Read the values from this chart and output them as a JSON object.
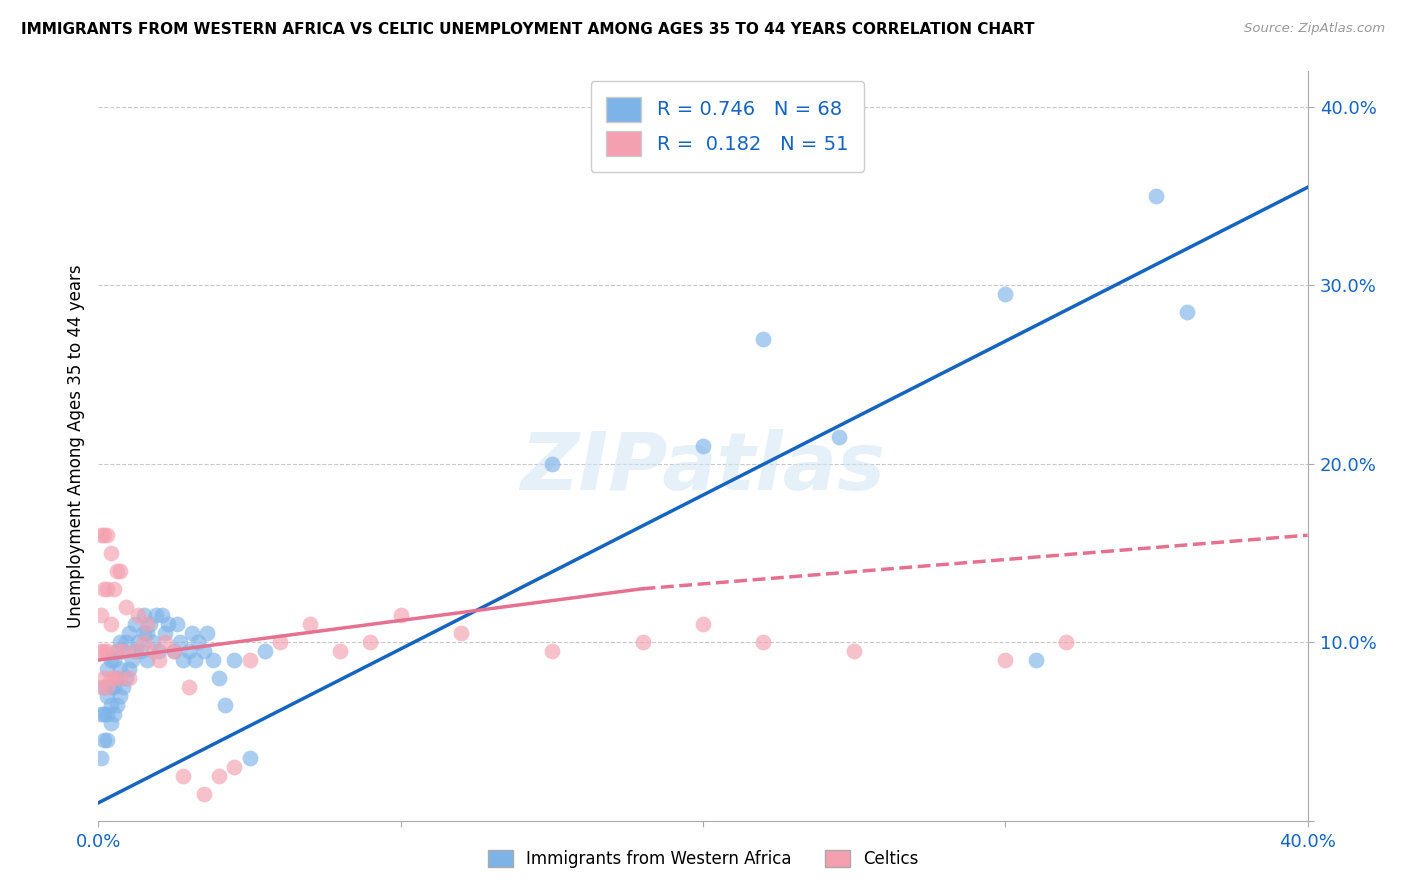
{
  "title": "IMMIGRANTS FROM WESTERN AFRICA VS CELTIC UNEMPLOYMENT AMONG AGES 35 TO 44 YEARS CORRELATION CHART",
  "source": "Source: ZipAtlas.com",
  "ylabel": "Unemployment Among Ages 35 to 44 years",
  "xlim": [
    0.0,
    0.4
  ],
  "ylim": [
    0.0,
    0.42
  ],
  "yticks": [
    0.0,
    0.1,
    0.2,
    0.3,
    0.4
  ],
  "ytick_labels_right": [
    "",
    "10.0%",
    "20.0%",
    "30.0%",
    "40.0%"
  ],
  "xticks": [
    0.0,
    0.1,
    0.2,
    0.3,
    0.4
  ],
  "xtick_labels": [
    "0.0%",
    "",
    "",
    "",
    "40.0%"
  ],
  "legend_blue_r": "0.746",
  "legend_blue_n": "68",
  "legend_pink_r": "0.182",
  "legend_pink_n": "51",
  "legend_label_blue": "Immigrants from Western Africa",
  "legend_label_pink": "Celtics",
  "blue_color": "#7EB3E8",
  "pink_color": "#F4A0B0",
  "blue_line_color": "#1565C0",
  "pink_line_color": "#E57090",
  "watermark_text": "ZIPatlas",
  "blue_scatter_x": [
    0.001,
    0.001,
    0.002,
    0.002,
    0.002,
    0.003,
    0.003,
    0.003,
    0.003,
    0.004,
    0.004,
    0.004,
    0.004,
    0.005,
    0.005,
    0.005,
    0.006,
    0.006,
    0.006,
    0.007,
    0.007,
    0.007,
    0.008,
    0.008,
    0.009,
    0.009,
    0.01,
    0.01,
    0.011,
    0.012,
    0.012,
    0.013,
    0.014,
    0.015,
    0.015,
    0.016,
    0.016,
    0.017,
    0.018,
    0.019,
    0.02,
    0.021,
    0.022,
    0.023,
    0.025,
    0.026,
    0.027,
    0.028,
    0.03,
    0.031,
    0.032,
    0.033,
    0.035,
    0.036,
    0.038,
    0.04,
    0.042,
    0.045,
    0.05,
    0.055,
    0.15,
    0.2,
    0.22,
    0.245,
    0.3,
    0.31,
    0.35,
    0.36
  ],
  "blue_scatter_y": [
    0.035,
    0.06,
    0.045,
    0.06,
    0.075,
    0.045,
    0.06,
    0.07,
    0.085,
    0.055,
    0.065,
    0.075,
    0.09,
    0.06,
    0.075,
    0.09,
    0.065,
    0.08,
    0.095,
    0.07,
    0.085,
    0.1,
    0.075,
    0.095,
    0.08,
    0.1,
    0.085,
    0.105,
    0.09,
    0.095,
    0.11,
    0.1,
    0.095,
    0.105,
    0.115,
    0.09,
    0.105,
    0.11,
    0.1,
    0.115,
    0.095,
    0.115,
    0.105,
    0.11,
    0.095,
    0.11,
    0.1,
    0.09,
    0.095,
    0.105,
    0.09,
    0.1,
    0.095,
    0.105,
    0.09,
    0.08,
    0.065,
    0.09,
    0.035,
    0.095,
    0.2,
    0.21,
    0.27,
    0.215,
    0.295,
    0.09,
    0.35,
    0.285
  ],
  "pink_scatter_x": [
    0.001,
    0.001,
    0.001,
    0.001,
    0.002,
    0.002,
    0.002,
    0.002,
    0.003,
    0.003,
    0.003,
    0.003,
    0.004,
    0.004,
    0.004,
    0.005,
    0.005,
    0.006,
    0.006,
    0.007,
    0.007,
    0.008,
    0.009,
    0.01,
    0.012,
    0.013,
    0.015,
    0.016,
    0.018,
    0.02,
    0.022,
    0.025,
    0.028,
    0.03,
    0.035,
    0.04,
    0.045,
    0.05,
    0.06,
    0.07,
    0.08,
    0.09,
    0.1,
    0.12,
    0.15,
    0.18,
    0.2,
    0.22,
    0.25,
    0.3,
    0.32
  ],
  "pink_scatter_y": [
    0.075,
    0.095,
    0.115,
    0.16,
    0.08,
    0.095,
    0.13,
    0.16,
    0.075,
    0.095,
    0.13,
    0.16,
    0.08,
    0.11,
    0.15,
    0.08,
    0.13,
    0.095,
    0.14,
    0.08,
    0.14,
    0.095,
    0.12,
    0.08,
    0.095,
    0.115,
    0.1,
    0.11,
    0.095,
    0.09,
    0.1,
    0.095,
    0.025,
    0.075,
    0.015,
    0.025,
    0.03,
    0.09,
    0.1,
    0.11,
    0.095,
    0.1,
    0.115,
    0.105,
    0.095,
    0.1,
    0.11,
    0.1,
    0.095,
    0.09,
    0.1
  ],
  "blue_line_y_at_0": 0.01,
  "blue_line_y_at_040": 0.355,
  "pink_line_y_at_0": 0.09,
  "pink_line_solid_end_x": 0.18,
  "pink_line_y_at_solid_end": 0.13,
  "pink_line_y_at_040": 0.16
}
